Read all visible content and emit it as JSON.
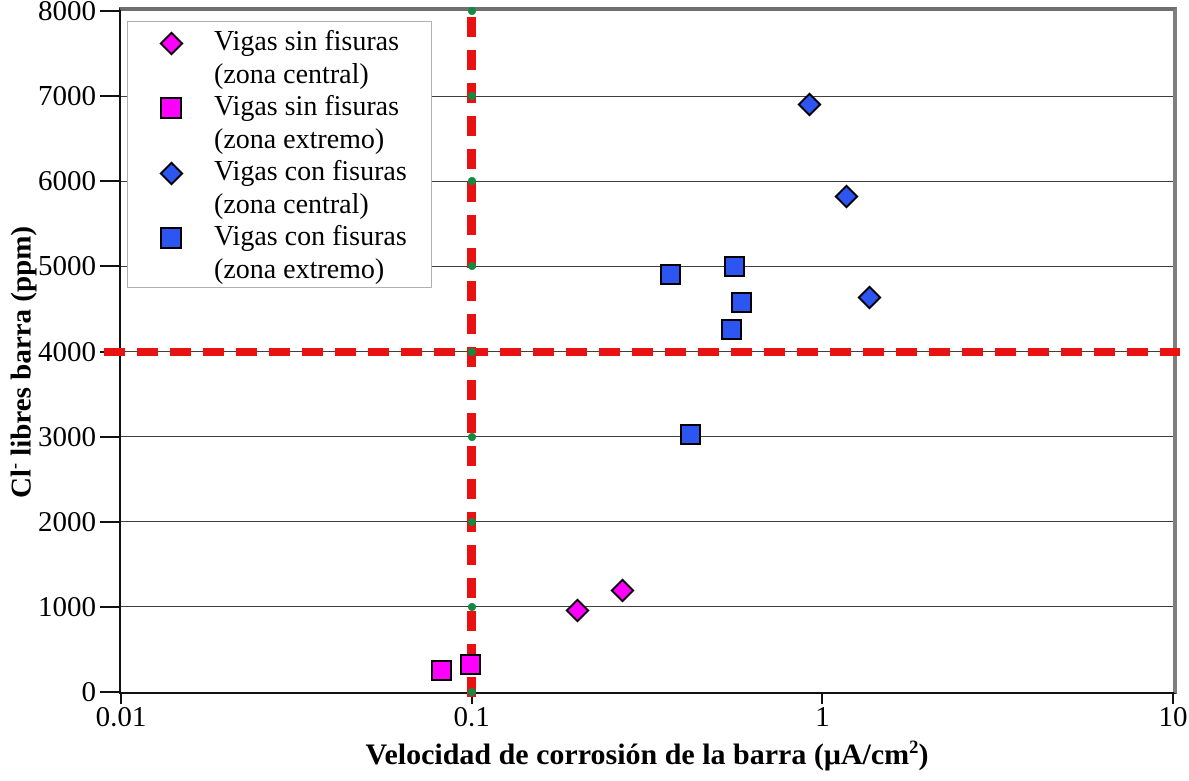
{
  "chart_data": {
    "type": "scatter",
    "x_scale": "log",
    "xlim": [
      0.01,
      10
    ],
    "ylim": [
      0,
      8000
    ],
    "xticks": [
      0.01,
      0.1,
      1,
      10
    ],
    "xtick_labels": [
      "0.01",
      "0.1",
      "1",
      "10"
    ],
    "yticks": [
      0,
      1000,
      2000,
      3000,
      4000,
      5000,
      6000,
      7000,
      8000
    ],
    "ytick_labels": [
      "0",
      "1000",
      "2000",
      "3000",
      "4000",
      "5000",
      "6000",
      "7000",
      "8000"
    ],
    "grid": "horizontal",
    "legend_position": "top-left",
    "xlabel_parts": {
      "pre": "Velocidad de corrosión de la barra (μA/cm",
      "sup": "2",
      "post": ")"
    },
    "ylabel_parts": {
      "pre": "Cl",
      "sup": "-",
      "post": " libres barra (ppm)"
    },
    "series": [
      {
        "name_line1": "Vigas sin fisuras",
        "name_line2": "(zona central)",
        "marker": "diamond",
        "color": "#FF00FF",
        "points": [
          [
            0.2,
            960
          ],
          [
            0.27,
            1190
          ]
        ]
      },
      {
        "name_line1": "Vigas sin fisuras",
        "name_line2": "(zona extremo)",
        "marker": "square",
        "color": "#FF00FF",
        "points": [
          [
            0.082,
            250
          ],
          [
            0.099,
            320
          ]
        ]
      },
      {
        "name_line1": "Vigas con fisuras",
        "name_line2": "(zona central)",
        "marker": "diamond",
        "color": "#2D55F2",
        "points": [
          [
            0.92,
            6900
          ],
          [
            1.17,
            5820
          ],
          [
            1.36,
            4630
          ]
        ]
      },
      {
        "name_line1": "Vigas con fisuras",
        "name_line2": "(zona extremo)",
        "marker": "square",
        "color": "#2D55F2",
        "points": [
          [
            0.37,
            4900
          ],
          [
            0.56,
            5000
          ],
          [
            0.59,
            4570
          ],
          [
            0.55,
            4260
          ],
          [
            0.42,
            3020
          ]
        ]
      }
    ],
    "reference_lines": {
      "vertical_x": 0.1,
      "horizontal_y": 4000,
      "color": "#E91212",
      "intersection_dot_color": "#128A42"
    }
  },
  "colors": {
    "marker_border": "#000000",
    "gridline": "#3f3f3f",
    "background": "#ffffff"
  }
}
